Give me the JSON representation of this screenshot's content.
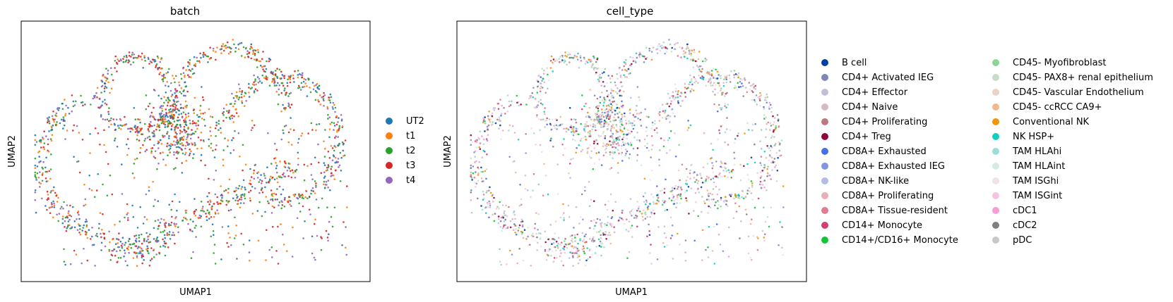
{
  "chart_data": [
    {
      "type": "scatter",
      "title": "batch",
      "xlabel": "UMAP1",
      "ylabel": "UMAP2",
      "grid": false,
      "ticks": false,
      "legend_placement": "right",
      "legend_columns": 1,
      "series": [
        {
          "name": "UT2",
          "color": "#1f77b4"
        },
        {
          "name": "t1",
          "color": "#ff7f0e"
        },
        {
          "name": "t2",
          "color": "#2ca02c"
        },
        {
          "name": "t3",
          "color": "#d62728"
        },
        {
          "name": "t4",
          "color": "#9467bd"
        }
      ]
    },
    {
      "type": "scatter",
      "title": "cell_type",
      "xlabel": "UMAP1",
      "ylabel": "UMAP2",
      "grid": false,
      "ticks": false,
      "legend_placement": "right",
      "legend_columns": 2,
      "series": [
        {
          "name": "B cell",
          "color": "#023fa5"
        },
        {
          "name": "CD4+ Activated IEG",
          "color": "#7d87b9"
        },
        {
          "name": "CD4+ Effector",
          "color": "#bec1d4"
        },
        {
          "name": "CD4+ Naive",
          "color": "#d6bcc0"
        },
        {
          "name": "CD4+ Proliferating",
          "color": "#bb7784"
        },
        {
          "name": "CD4+ Treg",
          "color": "#8e063b"
        },
        {
          "name": "CD8A+ Exhausted",
          "color": "#4a6fe3"
        },
        {
          "name": "CD8A+ Exhausted IEG",
          "color": "#8595e1"
        },
        {
          "name": "CD8A+ NK-like",
          "color": "#b5bbe3"
        },
        {
          "name": "CD8A+ Proliferating",
          "color": "#e6afb9"
        },
        {
          "name": "CD8A+ Tissue-resident",
          "color": "#e07b91"
        },
        {
          "name": "CD14+ Monocyte",
          "color": "#d33f6a"
        },
        {
          "name": "CD14+/CD16+ Monocyte",
          "color": "#11c638"
        },
        {
          "name": "CD45- Myofibroblast",
          "color": "#8dd593"
        },
        {
          "name": "CD45- PAX8+ renal epithelium",
          "color": "#c6dec7"
        },
        {
          "name": "CD45- Vascular Endothelium",
          "color": "#ead3c6"
        },
        {
          "name": "CD45- ccRCC CA9+",
          "color": "#f0b98d"
        },
        {
          "name": "Conventional NK",
          "color": "#ef9708"
        },
        {
          "name": "NK HSP+",
          "color": "#0fcfc0"
        },
        {
          "name": "TAM HLAhi",
          "color": "#9cded6"
        },
        {
          "name": "TAM HLAint",
          "color": "#d5eae7"
        },
        {
          "name": "TAM ISGhi",
          "color": "#f3e1eb"
        },
        {
          "name": "TAM ISGint",
          "color": "#f6c4e1"
        },
        {
          "name": "cDC1",
          "color": "#f79cd4"
        },
        {
          "name": "cDC2",
          "color": "#7f7f7f"
        },
        {
          "name": "pDC",
          "color": "#c7c7c7"
        }
      ]
    }
  ]
}
